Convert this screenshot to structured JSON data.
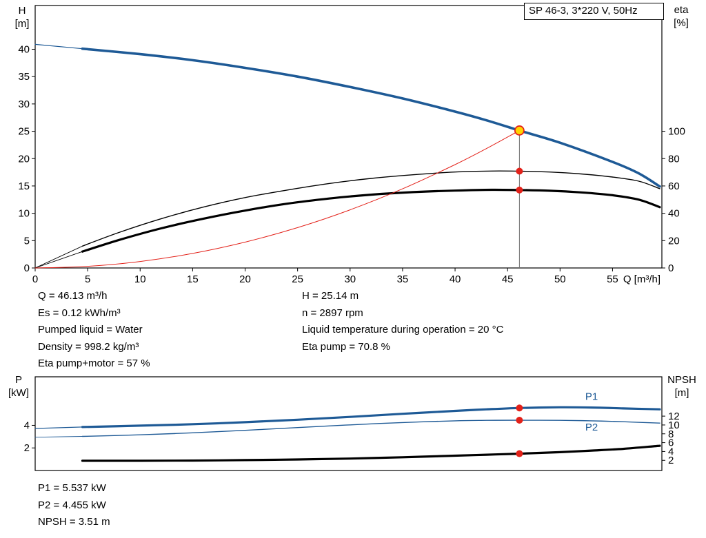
{
  "colors": {
    "blue": "#1e5a96",
    "black": "#000000",
    "red": "#e32119",
    "yellow": "#ffd400",
    "gray": "#707070"
  },
  "chart_data": [
    {
      "type": "line",
      "name": "qh-eta-chart",
      "title": "SP 46-3, 3*220 V, 50Hz",
      "xlabel": "Q [m³/h]",
      "x_range": [
        0,
        59.7
      ],
      "x_ticks": [
        0,
        5,
        10,
        15,
        20,
        25,
        30,
        35,
        40,
        45,
        50,
        55
      ],
      "y_left": {
        "label_1": "H",
        "label_2": "[m]",
        "range": [
          0,
          48
        ],
        "ticks": [
          0,
          5,
          10,
          15,
          20,
          25,
          30,
          35,
          40
        ]
      },
      "y_right": {
        "label_1": "eta",
        "label_2": "[%]",
        "range": [
          0,
          192
        ],
        "ticks": [
          0,
          20,
          40,
          60,
          80,
          100
        ]
      },
      "grid": false,
      "duty_line": {
        "x": 46.13,
        "to": 25.14
      },
      "series": [
        {
          "name": "qh-curve-lead",
          "axis": "left",
          "color": "blue",
          "width": 1.2,
          "points": [
            [
              0,
              40.9
            ],
            [
              4.5,
              40.1
            ]
          ]
        },
        {
          "name": "qh-curve",
          "axis": "left",
          "color": "blue",
          "width": 3.6,
          "points": [
            [
              4.5,
              40.1
            ],
            [
              10,
              39.1
            ],
            [
              15,
              38.0
            ],
            [
              20,
              36.6
            ],
            [
              25,
              35.0
            ],
            [
              30,
              33.1
            ],
            [
              35,
              31.0
            ],
            [
              40,
              28.6
            ],
            [
              43,
              27.0
            ],
            [
              46.13,
              25.14
            ],
            [
              50,
              22.9
            ],
            [
              55,
              19.4
            ],
            [
              57.5,
              17.3
            ],
            [
              59.5,
              14.9
            ]
          ]
        },
        {
          "name": "eta-pump-lead",
          "axis": "right",
          "color": "black",
          "width": 0.9,
          "points": [
            [
              0,
              0
            ],
            [
              4.5,
              16
            ]
          ]
        },
        {
          "name": "eta-pump-curve",
          "axis": "right",
          "color": "black",
          "width": 1.4,
          "points": [
            [
              4.5,
              16
            ],
            [
              8,
              26
            ],
            [
              12,
              36
            ],
            [
              16,
              44.5
            ],
            [
              20,
              51.5
            ],
            [
              24,
              57
            ],
            [
              28,
              61.8
            ],
            [
              32,
              65.5
            ],
            [
              36,
              68.2
            ],
            [
              40,
              70.2
            ],
            [
              43.5,
              70.9
            ],
            [
              46.13,
              70.8
            ],
            [
              49,
              70.2
            ],
            [
              52,
              68.8
            ],
            [
              55,
              66.5
            ],
            [
              57.5,
              63.5
            ],
            [
              59.5,
              58
            ]
          ]
        },
        {
          "name": "eta-pump-motor-lead",
          "axis": "right",
          "color": "black",
          "width": 0.9,
          "points": [
            [
              0,
              0
            ],
            [
              4.5,
              12
            ]
          ]
        },
        {
          "name": "eta-pump-motor-curve",
          "axis": "right",
          "color": "black",
          "width": 3.2,
          "points": [
            [
              4.5,
              12
            ],
            [
              8,
              20.5
            ],
            [
              12,
              29
            ],
            [
              16,
              36
            ],
            [
              20,
              42
            ],
            [
              24,
              47
            ],
            [
              28,
              50.8
            ],
            [
              32,
              53.6
            ],
            [
              36,
              55.5
            ],
            [
              40,
              56.6
            ],
            [
              43.5,
              57.2
            ],
            [
              46.13,
              57
            ],
            [
              49,
              56.5
            ],
            [
              52,
              55.3
            ],
            [
              55,
              53.2
            ],
            [
              57.5,
              50
            ],
            [
              59.5,
              44.5
            ]
          ]
        },
        {
          "name": "system-resistance-curve",
          "axis": "left",
          "color": "red",
          "width": 1,
          "points": [
            [
              0,
              0
            ],
            [
              5,
              0.3
            ],
            [
              10,
              1.18
            ],
            [
              15,
              2.66
            ],
            [
              20,
              4.73
            ],
            [
              25,
              7.38
            ],
            [
              30,
              10.63
            ],
            [
              35,
              14.47
            ],
            [
              40,
              18.9
            ],
            [
              43,
              21.85
            ],
            [
              46.13,
              25.14
            ]
          ]
        }
      ],
      "markers": [
        {
          "name": "duty-point",
          "x": 46.13,
          "axis": "left",
          "y": 25.14,
          "style": "duty"
        },
        {
          "name": "eta-pump-point",
          "x": 46.13,
          "axis": "right",
          "y": 70.8,
          "style": "red"
        },
        {
          "name": "eta-pump-motor-point",
          "x": 46.13,
          "axis": "right",
          "y": 57,
          "style": "red"
        }
      ],
      "curve_labels": []
    },
    {
      "type": "line",
      "name": "power-npsh-chart",
      "title": "",
      "xlabel": "",
      "x_range": [
        0,
        59.7
      ],
      "x_ticks": [],
      "y_left": {
        "label_1": "P",
        "label_2": "[kW]",
        "range": [
          0,
          8.3
        ],
        "ticks": [
          2,
          4
        ]
      },
      "y_right": {
        "label_1": "NPSH",
        "label_2": "[m]",
        "range": [
          -0.3,
          20.9
        ],
        "ticks": [
          2,
          4,
          6,
          8,
          10,
          12
        ]
      },
      "grid": false,
      "series": [
        {
          "name": "p1-curve-lead",
          "axis": "left",
          "color": "blue",
          "width": 1.2,
          "points": [
            [
              0,
              3.72
            ],
            [
              4.5,
              3.85
            ]
          ]
        },
        {
          "name": "p1-curve",
          "axis": "left",
          "color": "blue",
          "width": 3.2,
          "points": [
            [
              4.5,
              3.85
            ],
            [
              10,
              3.97
            ],
            [
              15,
              4.1
            ],
            [
              20,
              4.28
            ],
            [
              25,
              4.5
            ],
            [
              30,
              4.75
            ],
            [
              35,
              5.02
            ],
            [
              40,
              5.28
            ],
            [
              43,
              5.42
            ],
            [
              46.13,
              5.537
            ],
            [
              50,
              5.6
            ],
            [
              53,
              5.58
            ],
            [
              56,
              5.5
            ],
            [
              59.5,
              5.42
            ]
          ]
        },
        {
          "name": "p2-curve-lead",
          "axis": "left",
          "color": "blue",
          "width": 0.9,
          "points": [
            [
              0,
              2.95
            ],
            [
              4.5,
              3.02
            ]
          ]
        },
        {
          "name": "p2-curve",
          "axis": "left",
          "color": "blue",
          "width": 1.4,
          "points": [
            [
              4.5,
              3.02
            ],
            [
              10,
              3.16
            ],
            [
              15,
              3.34
            ],
            [
              20,
              3.56
            ],
            [
              25,
              3.8
            ],
            [
              30,
              4.04
            ],
            [
              35,
              4.25
            ],
            [
              40,
              4.4
            ],
            [
              43,
              4.44
            ],
            [
              46.13,
              4.455
            ],
            [
              50,
              4.44
            ],
            [
              53,
              4.4
            ],
            [
              56,
              4.32
            ],
            [
              59.5,
              4.2
            ]
          ]
        },
        {
          "name": "npsh-curve",
          "axis": "right",
          "color": "black",
          "width": 3.2,
          "points": [
            [
              4.5,
              1.9
            ],
            [
              10,
              1.9
            ],
            [
              15,
              1.95
            ],
            [
              20,
              2.05
            ],
            [
              25,
              2.2
            ],
            [
              30,
              2.4
            ],
            [
              35,
              2.7
            ],
            [
              40,
              3.05
            ],
            [
              43,
              3.27
            ],
            [
              46.13,
              3.51
            ],
            [
              50,
              3.85
            ],
            [
              53,
              4.2
            ],
            [
              56,
              4.6
            ],
            [
              59.5,
              5.3
            ]
          ]
        }
      ],
      "markers": [
        {
          "name": "p1-point",
          "x": 46.13,
          "axis": "left",
          "y": 5.537,
          "style": "red"
        },
        {
          "name": "p2-point",
          "x": 46.13,
          "axis": "left",
          "y": 4.455,
          "style": "red"
        },
        {
          "name": "npsh-point",
          "x": 46.13,
          "axis": "right",
          "y": 3.51,
          "style": "red"
        }
      ],
      "curve_labels": [
        {
          "text": "P1",
          "x": 52.4,
          "axis": "left",
          "y": 6.25,
          "color": "blue"
        },
        {
          "text": "P2",
          "x": 52.4,
          "axis": "left",
          "y": 3.55,
          "color": "blue"
        }
      ]
    }
  ],
  "operating_point": {
    "left": [
      "Q = 46.13 m³/h",
      "Es = 0.12 kWh/m³",
      "Pumped liquid = Water",
      "Density = 998.2 kg/m³",
      "Eta pump+motor = 57 %"
    ],
    "right": [
      "H = 25.14 m",
      "n = 2897 rpm",
      "Liquid temperature during operation = 20 °C",
      "Eta pump = 70.8 %"
    ]
  },
  "power_npsh": [
    "P1 = 5.537 kW",
    "P2 = 4.455 kW",
    "NPSH = 3.51 m"
  ]
}
